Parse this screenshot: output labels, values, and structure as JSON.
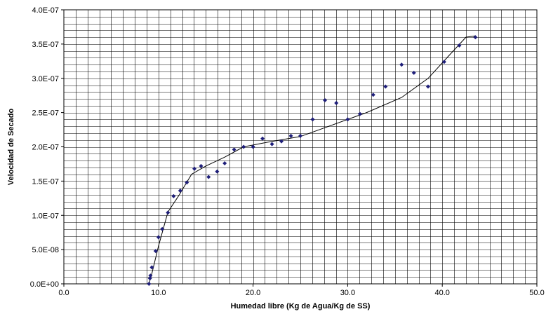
{
  "chart_data": {
    "type": "scatter",
    "title": "",
    "xlabel": "Humedad libre (Kg de Agua/Kg de SS)",
    "ylabel": "Velocidad de Secado",
    "xlim": [
      0,
      50
    ],
    "ylim": [
      0,
      4e-07
    ],
    "x_ticks": [
      "0.0",
      "10.0",
      "20.0",
      "30.0",
      "40.0",
      "50.0"
    ],
    "y_ticks": [
      "0.0E+00",
      "5.0E-08",
      "1.0E-07",
      "1.5E-07",
      "2.0E-07",
      "2.5E-07",
      "3.0E-07",
      "3.5E-07",
      "4.0E-07"
    ],
    "grid": true,
    "colors": {
      "points": "#1f1f7a",
      "line": "#000000",
      "grid": "#000000"
    },
    "series": [
      {
        "kind": "points",
        "x": [
          9.0,
          9.1,
          9.15,
          9.3,
          9.7,
          10.0,
          10.4,
          11.0,
          11.6,
          12.3,
          13.0,
          13.8,
          14.5,
          15.3,
          16.2,
          17.0,
          18.0,
          19.0,
          20.0,
          21.0,
          22.0,
          23.0,
          24.0,
          25.0,
          26.3,
          27.6,
          28.8,
          30.0,
          31.3,
          32.7,
          34.0,
          35.7,
          37.0,
          38.5,
          40.2,
          41.8,
          43.5
        ],
        "y": [
          0.0,
          8e-09,
          1.2e-08,
          2.4e-08,
          4.8e-08,
          6.8e-08,
          8e-08,
          1.04e-07,
          1.28e-07,
          1.36e-07,
          1.48e-07,
          1.68e-07,
          1.72e-07,
          1.56e-07,
          1.64e-07,
          1.76e-07,
          1.96e-07,
          2e-07,
          2e-07,
          2.12e-07,
          2.04e-07,
          2.08e-07,
          2.16e-07,
          2.16e-07,
          2.4e-07,
          2.68e-07,
          2.64e-07,
          2.4e-07,
          2.48e-07,
          2.76e-07,
          2.88e-07,
          3.2e-07,
          3.08e-07,
          2.88e-07,
          3.24e-07,
          3.48e-07,
          3.6e-07
        ]
      },
      {
        "kind": "line",
        "x": [
          9.0,
          9.3,
          10.0,
          11.0,
          12.2,
          13.5,
          15.0,
          17.0,
          19.0,
          22.0,
          25.0,
          28.0,
          32.0,
          35.7,
          38.5,
          40.5,
          42.5,
          43.5
        ],
        "y": [
          0.0,
          1.5e-08,
          5.5e-08,
          1.05e-07,
          1.3e-07,
          1.6e-07,
          1.72e-07,
          1.85e-07,
          2e-07,
          2.08e-07,
          2.15e-07,
          2.3e-07,
          2.5e-07,
          2.72e-07,
          3e-07,
          3.3e-07,
          3.6e-07,
          3.62e-07
        ]
      }
    ]
  }
}
